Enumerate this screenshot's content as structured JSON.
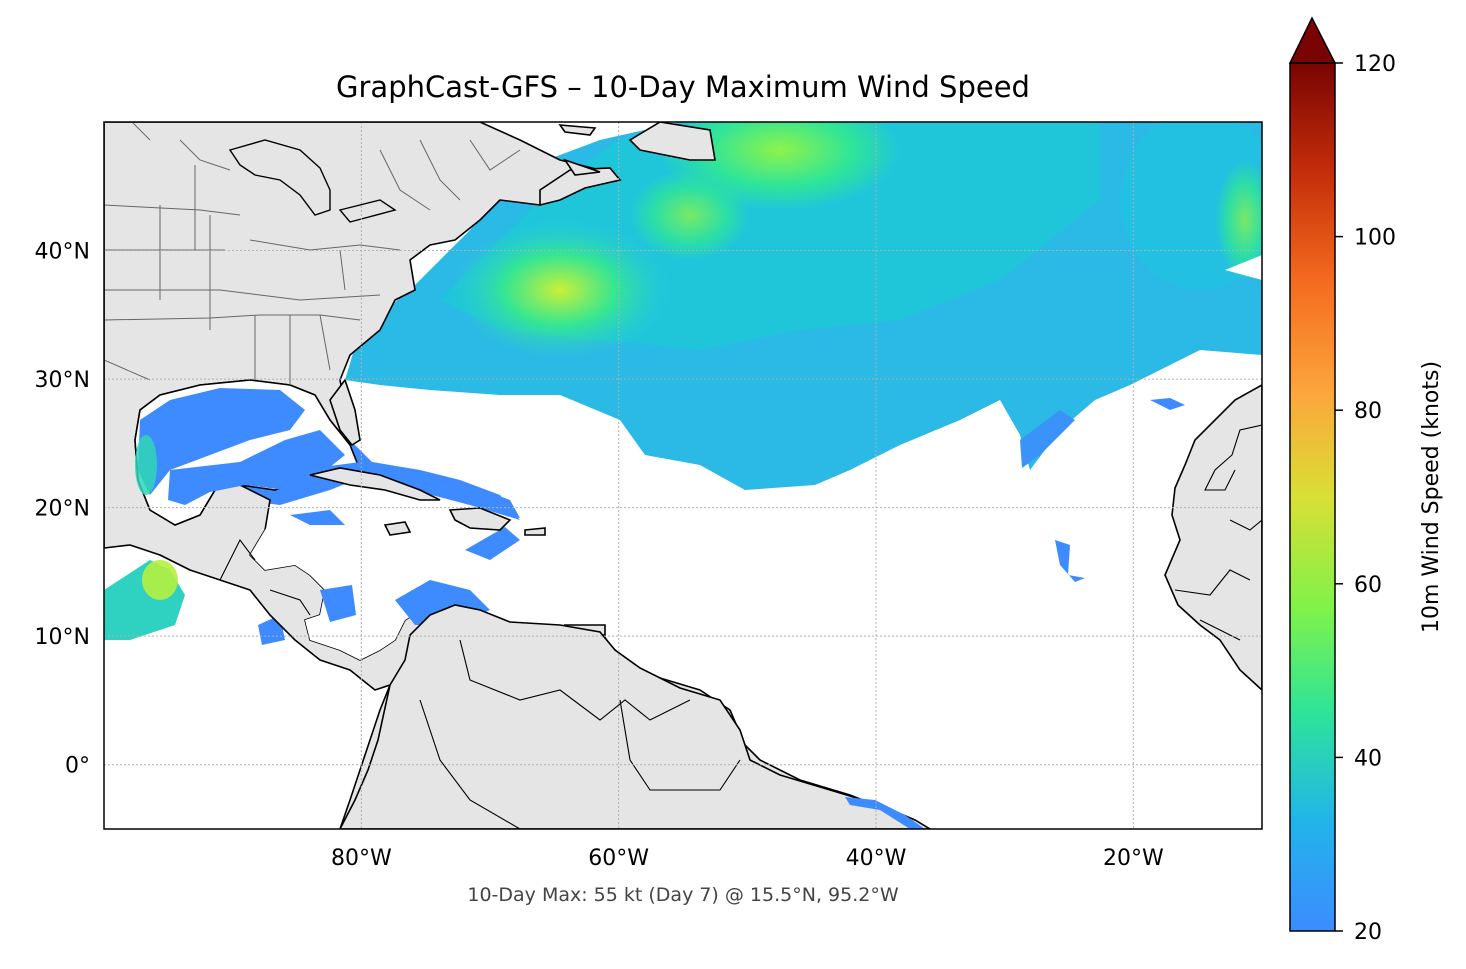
{
  "title": "GraphCast-GFS – 10-Day Maximum Wind Speed",
  "subtitle": "10-Day Max: 55 kt (Day 7) @ 15.5°N, 95.2°W",
  "map": {
    "lon_range": [
      -100,
      -10
    ],
    "lat_range": [
      -5,
      50
    ],
    "lon_ticks": [
      {
        "value": -80,
        "label": "80°W"
      },
      {
        "value": -60,
        "label": "60°W"
      },
      {
        "value": -40,
        "label": "40°W"
      },
      {
        "value": -20,
        "label": "20°W"
      }
    ],
    "lat_ticks": [
      {
        "value": 40,
        "label": "40°N"
      },
      {
        "value": 30,
        "label": "30°N"
      },
      {
        "value": 20,
        "label": "20°N"
      },
      {
        "value": 10,
        "label": "10°N"
      },
      {
        "value": 0,
        "label": "0°"
      }
    ],
    "grid": true,
    "land_color": "#e5e5e5",
    "ocean_color": "#ffffff"
  },
  "colorbar": {
    "label": "10m Wind Speed (knots)",
    "min": 20,
    "max": 120,
    "extend": "max",
    "ticks": [
      20,
      40,
      60,
      80,
      100,
      120
    ],
    "colors": [
      "#3d8bff",
      "#1ec8d8",
      "#2de39a",
      "#a5f23c",
      "#e0d836",
      "#fca63c",
      "#f46a1f",
      "#c6300a",
      "#7a0403"
    ]
  },
  "max_point": {
    "value": 55,
    "day": 7,
    "lat": 15.5,
    "lon": -95.2
  }
}
